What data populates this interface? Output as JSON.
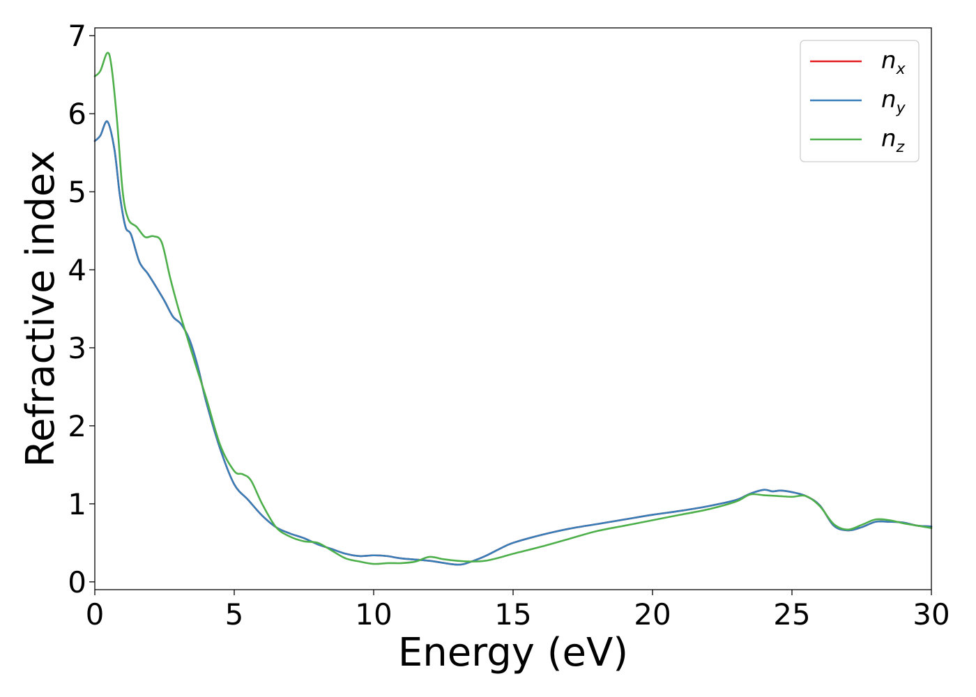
{
  "chart_data": {
    "type": "line",
    "xlabel": "Energy (eV)",
    "ylabel": "Refractive index",
    "xlim": [
      0,
      30
    ],
    "ylim": [
      -0.1,
      7.1
    ],
    "xticks": [
      0,
      5,
      10,
      15,
      20,
      25,
      30
    ],
    "xtick_labels": [
      "0",
      "5",
      "10",
      "15",
      "20",
      "25",
      "30"
    ],
    "yticks": [
      0,
      1,
      2,
      3,
      4,
      5,
      6,
      7
    ],
    "ytick_labels": [
      "0",
      "1",
      "2",
      "3",
      "4",
      "5",
      "6",
      "7"
    ],
    "grid": false,
    "legend_position": "top-right",
    "series": [
      {
        "name": "n_x",
        "label_base": "n",
        "label_sub": "x",
        "color": "#e41a1c",
        "x": [
          0,
          0.2,
          0.45,
          0.7,
          0.9,
          1.1,
          1.3,
          1.6,
          1.9,
          2.2,
          2.5,
          2.8,
          3.1,
          3.4,
          3.7,
          4.0,
          4.5,
          5.0,
          5.5,
          6.0,
          6.5,
          7.0,
          7.5,
          8.0,
          8.5,
          9.0,
          9.5,
          10.0,
          10.5,
          11.0,
          12.0,
          13.0,
          13.5,
          14.0,
          14.5,
          15.0,
          16.0,
          17.0,
          18.0,
          19.0,
          20.0,
          21.0,
          22.0,
          23.0,
          23.5,
          24.0,
          24.3,
          24.6,
          25.0,
          25.5,
          26.0,
          26.5,
          27.0,
          27.5,
          28.0,
          28.5,
          29.0,
          29.5,
          30.0
        ],
        "y": [
          5.65,
          5.72,
          5.9,
          5.55,
          4.95,
          4.55,
          4.45,
          4.1,
          3.95,
          3.78,
          3.6,
          3.4,
          3.3,
          3.1,
          2.75,
          2.3,
          1.7,
          1.25,
          1.05,
          0.85,
          0.7,
          0.62,
          0.56,
          0.48,
          0.42,
          0.36,
          0.33,
          0.34,
          0.33,
          0.3,
          0.27,
          0.22,
          0.26,
          0.33,
          0.42,
          0.5,
          0.6,
          0.68,
          0.74,
          0.8,
          0.86,
          0.91,
          0.97,
          1.05,
          1.13,
          1.18,
          1.16,
          1.17,
          1.15,
          1.1,
          0.98,
          0.72,
          0.66,
          0.7,
          0.77,
          0.77,
          0.76,
          0.72,
          0.71
        ]
      },
      {
        "name": "n_y",
        "label_base": "n",
        "label_sub": "y",
        "color": "#377eb8",
        "x": [
          0,
          0.2,
          0.45,
          0.7,
          0.9,
          1.1,
          1.3,
          1.6,
          1.9,
          2.2,
          2.5,
          2.8,
          3.1,
          3.4,
          3.7,
          4.0,
          4.5,
          5.0,
          5.5,
          6.0,
          6.5,
          7.0,
          7.5,
          8.0,
          8.5,
          9.0,
          9.5,
          10.0,
          10.5,
          11.0,
          12.0,
          13.0,
          13.5,
          14.0,
          14.5,
          15.0,
          16.0,
          17.0,
          18.0,
          19.0,
          20.0,
          21.0,
          22.0,
          23.0,
          23.5,
          24.0,
          24.3,
          24.6,
          25.0,
          25.5,
          26.0,
          26.5,
          27.0,
          27.5,
          28.0,
          28.5,
          29.0,
          29.5,
          30.0
        ],
        "y": [
          5.65,
          5.72,
          5.9,
          5.55,
          4.95,
          4.55,
          4.45,
          4.1,
          3.95,
          3.78,
          3.6,
          3.4,
          3.3,
          3.1,
          2.75,
          2.3,
          1.7,
          1.25,
          1.05,
          0.85,
          0.7,
          0.62,
          0.56,
          0.48,
          0.42,
          0.36,
          0.33,
          0.34,
          0.33,
          0.3,
          0.27,
          0.22,
          0.26,
          0.33,
          0.42,
          0.5,
          0.6,
          0.68,
          0.74,
          0.8,
          0.86,
          0.91,
          0.97,
          1.05,
          1.13,
          1.18,
          1.16,
          1.17,
          1.15,
          1.1,
          0.98,
          0.72,
          0.66,
          0.7,
          0.77,
          0.77,
          0.76,
          0.72,
          0.71
        ]
      },
      {
        "name": "n_z",
        "label_base": "n",
        "label_sub": "z",
        "color": "#4daf4a",
        "x": [
          0,
          0.2,
          0.45,
          0.6,
          0.8,
          1.0,
          1.2,
          1.5,
          1.8,
          2.1,
          2.4,
          2.7,
          3.0,
          3.3,
          3.6,
          4.0,
          4.5,
          5.0,
          5.3,
          5.6,
          6.0,
          6.5,
          7.0,
          7.5,
          8.0,
          8.5,
          9.0,
          9.5,
          10.0,
          10.5,
          11.0,
          11.5,
          12.0,
          12.5,
          13.0,
          13.5,
          14.0,
          14.5,
          15.0,
          16.0,
          17.0,
          18.0,
          19.0,
          20.0,
          21.0,
          22.0,
          23.0,
          23.5,
          24.0,
          24.5,
          25.0,
          25.5,
          26.0,
          26.5,
          27.0,
          27.5,
          28.0,
          28.5,
          29.0,
          29.5,
          30.0
        ],
        "y": [
          6.48,
          6.55,
          6.78,
          6.6,
          5.9,
          5.0,
          4.65,
          4.55,
          4.42,
          4.43,
          4.35,
          3.9,
          3.5,
          3.15,
          2.8,
          2.35,
          1.75,
          1.42,
          1.38,
          1.3,
          1.0,
          0.7,
          0.58,
          0.52,
          0.5,
          0.4,
          0.3,
          0.26,
          0.23,
          0.24,
          0.24,
          0.26,
          0.32,
          0.29,
          0.27,
          0.26,
          0.27,
          0.31,
          0.36,
          0.45,
          0.55,
          0.65,
          0.72,
          0.79,
          0.86,
          0.93,
          1.03,
          1.12,
          1.11,
          1.1,
          1.09,
          1.1,
          0.97,
          0.74,
          0.67,
          0.73,
          0.8,
          0.79,
          0.75,
          0.72,
          0.69
        ]
      }
    ]
  }
}
